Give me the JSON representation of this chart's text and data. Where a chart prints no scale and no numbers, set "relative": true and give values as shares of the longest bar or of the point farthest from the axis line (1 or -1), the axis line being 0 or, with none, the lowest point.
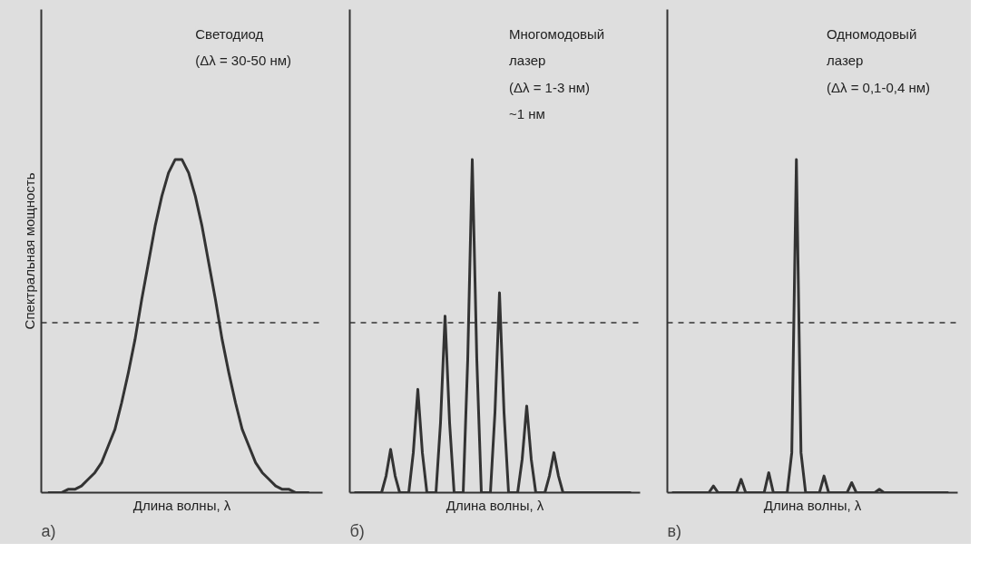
{
  "chart_data": [
    {
      "type": "line",
      "title": "а)",
      "xlabel": "Длина волны, λ",
      "ylabel": "Спектральная мощность",
      "relative": true,
      "line_style": "solid",
      "marker": "none",
      "annotations": [
        "Светодиод",
        "(Δλ = 30-50 нм)"
      ],
      "ref_lines": [
        {
          "axis": "y",
          "value": 0.51,
          "line_style": "dashed",
          "color": "#333333"
        }
      ],
      "categories": [
        null,
        null,
        null,
        null,
        null,
        null,
        null,
        null,
        null,
        null,
        null,
        null,
        null,
        null,
        null,
        null,
        null,
        null,
        null,
        null,
        null,
        null,
        null,
        null,
        null,
        null,
        null,
        null,
        null,
        null,
        null,
        null,
        null,
        null,
        null,
        null,
        null,
        null,
        null,
        null
      ],
      "series": [
        {
          "color": "#333333",
          "values": [
            0.0,
            0.0,
            0.0,
            0.01,
            0.01,
            0.02,
            0.04,
            0.06,
            0.09,
            0.14,
            0.19,
            0.27,
            0.36,
            0.46,
            0.58,
            0.69,
            0.8,
            0.89,
            0.96,
            1.0,
            1.0,
            0.96,
            0.89,
            0.8,
            0.69,
            0.58,
            0.46,
            0.36,
            0.27,
            0.19,
            0.14,
            0.09,
            0.06,
            0.04,
            0.02,
            0.01,
            0.01,
            0.0,
            0.0,
            0.0
          ]
        }
      ]
    },
    {
      "type": "line",
      "title": "б)",
      "xlabel": "Длина волны, λ",
      "relative": true,
      "line_style": "solid",
      "marker": "none",
      "annotations": [
        "Многомодовый",
        "лазер",
        "(Δλ = 1-3 нм)",
        "~1 нм"
      ],
      "ref_lines": [
        {
          "axis": "y",
          "value": 0.51,
          "line_style": "dashed",
          "color": "#333333"
        }
      ],
      "categories": [
        null,
        null,
        null,
        null,
        null,
        null,
        null,
        null,
        null,
        null,
        null,
        null,
        null,
        null,
        null,
        null,
        null,
        null,
        null,
        null,
        null,
        null,
        null,
        null,
        null,
        null,
        null,
        null,
        null,
        null,
        null,
        null,
        null,
        null,
        null,
        null,
        null,
        null,
        null,
        null,
        null,
        null,
        null,
        null,
        null,
        null,
        null,
        null,
        null,
        null,
        null,
        null,
        null,
        null,
        null,
        null,
        null,
        null,
        null,
        null,
        null,
        null
      ],
      "series": [
        {
          "color": "#333333",
          "values": [
            0,
            0,
            0,
            0,
            0,
            0,
            0,
            0.05,
            0.13,
            0.05,
            0,
            0,
            0,
            0.12,
            0.31,
            0.12,
            0,
            0,
            0,
            0.21,
            0.53,
            0.21,
            0,
            0,
            0,
            0.4,
            1.0,
            0.4,
            0,
            0,
            0,
            0.24,
            0.6,
            0.24,
            0,
            0,
            0,
            0.1,
            0.26,
            0.1,
            0,
            0,
            0,
            0.05,
            0.12,
            0.05,
            0,
            0,
            0,
            0,
            0,
            0,
            0,
            0,
            0,
            0,
            0,
            0,
            0,
            0,
            0,
            0
          ]
        }
      ]
    },
    {
      "type": "line",
      "title": "в)",
      "xlabel": "Длина волны, λ",
      "relative": true,
      "line_style": "solid",
      "marker": "none",
      "annotations": [
        "Одномодовый",
        "лазер",
        "(Δλ = 0,1-0,4 нм)"
      ],
      "ref_lines": [
        {
          "axis": "y",
          "value": 0.51,
          "line_style": "dashed",
          "color": "#333333"
        }
      ],
      "categories": [
        null,
        null,
        null,
        null,
        null,
        null,
        null,
        null,
        null,
        null,
        null,
        null,
        null,
        null,
        null,
        null,
        null,
        null,
        null,
        null,
        null,
        null,
        null,
        null,
        null,
        null,
        null,
        null,
        null,
        null,
        null,
        null,
        null,
        null,
        null,
        null,
        null,
        null,
        null,
        null,
        null,
        null,
        null,
        null,
        null,
        null,
        null,
        null,
        null,
        null,
        null,
        null,
        null,
        null,
        null,
        null,
        null,
        null,
        null,
        null,
        null
      ],
      "series": [
        {
          "color": "#333333",
          "values": [
            0,
            0,
            0,
            0,
            0,
            0,
            0,
            0,
            0,
            0.02,
            0,
            0,
            0,
            0,
            0,
            0.04,
            0,
            0,
            0,
            0,
            0,
            0.06,
            0,
            0,
            0,
            0,
            0.12,
            1.0,
            0.12,
            0,
            0,
            0,
            0,
            0.05,
            0,
            0,
            0,
            0,
            0,
            0.03,
            0,
            0,
            0,
            0,
            0,
            0.01,
            0,
            0,
            0,
            0,
            0,
            0,
            0,
            0,
            0,
            0,
            0,
            0,
            0,
            0,
            0
          ]
        }
      ]
    }
  ]
}
